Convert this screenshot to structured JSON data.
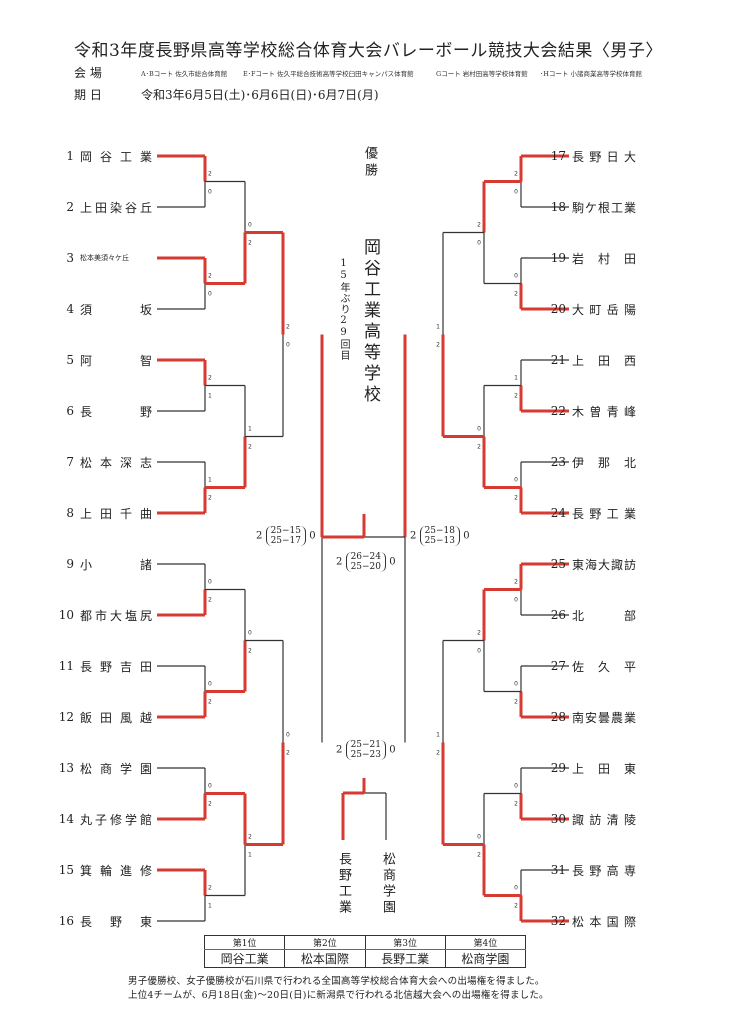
{
  "title": "令和3年度長野県高等学校総合体育大会バレーボール競技大会結果〈男子〉",
  "venue": {
    "label": "会 場",
    "courts": [
      "A･Bコート 佐久市総合体育館",
      "E･Fコート 佐久平総合技術高等学校臼田キャンパス体育館",
      "Gコート 岩村田高等学校体育館",
      "･Hコート 小諸商業高等学校体育館"
    ]
  },
  "period": {
    "label": "期 日",
    "dates": "令和3年6月5日(土)･6月6日(日)･6月7日(月)"
  },
  "left_teams": [
    {
      "num": "1",
      "name": "岡谷工業"
    },
    {
      "num": "2",
      "name": "上田染谷丘"
    },
    {
      "num": "3",
      "name": "松本美須々ケ丘"
    },
    {
      "num": "4",
      "name": "須坂"
    },
    {
      "num": "5",
      "name": "阿智"
    },
    {
      "num": "6",
      "name": "長野"
    },
    {
      "num": "7",
      "name": "松本深志"
    },
    {
      "num": "8",
      "name": "上田千曲"
    },
    {
      "num": "9",
      "name": "小諸"
    },
    {
      "num": "10",
      "name": "都市大塩尻"
    },
    {
      "num": "11",
      "name": "長野吉田"
    },
    {
      "num": "12",
      "name": "飯田風越"
    },
    {
      "num": "13",
      "name": "松商学園"
    },
    {
      "num": "14",
      "name": "丸子修学館"
    },
    {
      "num": "15",
      "name": "箕輪進修"
    },
    {
      "num": "16",
      "name": "長野東"
    }
  ],
  "right_teams": [
    {
      "num": "17",
      "name": "長野日大"
    },
    {
      "num": "18",
      "name": "駒ケ根工業"
    },
    {
      "num": "19",
      "name": "岩村田"
    },
    {
      "num": "20",
      "name": "大町岳陽"
    },
    {
      "num": "21",
      "name": "上田西"
    },
    {
      "num": "22",
      "name": "木曽青峰"
    },
    {
      "num": "23",
      "name": "伊那北"
    },
    {
      "num": "24",
      "name": "長野工業"
    },
    {
      "num": "25",
      "name": "東海大諏訪"
    },
    {
      "num": "26",
      "name": "北部"
    },
    {
      "num": "27",
      "name": "佐久平"
    },
    {
      "num": "28",
      "name": "南安曇農業"
    },
    {
      "num": "29",
      "name": "上田東"
    },
    {
      "num": "30",
      "name": "諏訪清陵"
    },
    {
      "num": "31",
      "name": "長野高専"
    },
    {
      "num": "32",
      "name": "松本国際"
    }
  ],
  "round1": {
    "left": [
      [
        "2",
        "0"
      ],
      [
        "2",
        "0"
      ],
      [
        "2",
        "1"
      ],
      [
        "1",
        "2"
      ],
      [
        "0",
        "2"
      ],
      [
        "0",
        "2"
      ],
      [
        "0",
        "2"
      ],
      [
        "2",
        "1"
      ]
    ],
    "right": [
      [
        "2",
        "0"
      ],
      [
        "0",
        "2"
      ],
      [
        "1",
        "2"
      ],
      [
        "0",
        "2"
      ],
      [
        "2",
        "0"
      ],
      [
        "0",
        "2"
      ],
      [
        "0",
        "2"
      ],
      [
        "0",
        "2"
      ]
    ]
  },
  "round2": {
    "left": [
      [
        "0",
        "2"
      ],
      [
        "1",
        "2"
      ],
      [
        "0",
        "2"
      ],
      [
        "2",
        "1"
      ]
    ],
    "right": [
      [
        "2",
        "0"
      ],
      [
        "0",
        "2"
      ],
      [
        "2",
        "0"
      ],
      [
        "0",
        "2"
      ]
    ]
  },
  "round3": {
    "left": [
      [
        "2",
        "0"
      ],
      [
        "0",
        "2"
      ]
    ],
    "right": [
      [
        "1",
        "2"
      ],
      [
        "1",
        "2"
      ]
    ]
  },
  "semifinal_left": {
    "left_sets": "2",
    "right_sets": "0",
    "games": [
      "25−15",
      "25−17"
    ]
  },
  "semifinal_right": {
    "left_sets": "2",
    "right_sets": "0",
    "games": [
      "25−18",
      "25−13"
    ]
  },
  "final": {
    "left_sets": "2",
    "right_sets": "0",
    "games": [
      "26−24",
      "25−20"
    ]
  },
  "third_place": {
    "left_sets": "2",
    "right_sets": "0",
    "games": [
      "25−21",
      "25−23"
    ]
  },
  "champion": {
    "label": "優勝",
    "name": "岡谷工業高等学校",
    "note": "15年ぶり29回目"
  },
  "third_match_teams": {
    "left": "長野工業",
    "right": "松商学園"
  },
  "ranking": {
    "headers": [
      "第1位",
      "第2位",
      "第3位",
      "第4位"
    ],
    "teams": [
      "岡谷工業",
      "松本国際",
      "長野工業",
      "松商学園"
    ]
  },
  "footer": [
    "男子優勝校、女子優勝校が石川県で行われる全国高等学校総合体育大会への出場権を得ました。",
    "上位4チームが、6月18日(金)〜20日(日)に新潟県で行われる北信越大会への出場権を得ました。"
  ],
  "colors": {
    "win": "#d63a30",
    "line": "#333333"
  }
}
